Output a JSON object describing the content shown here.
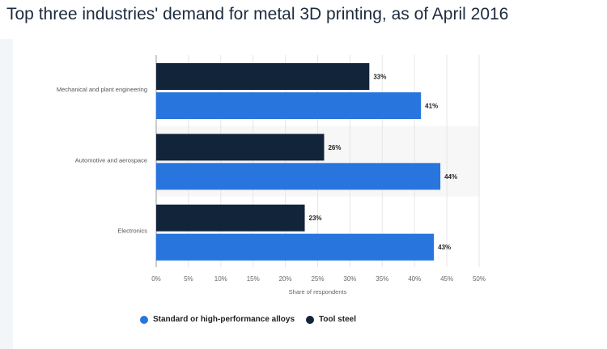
{
  "chart_data": {
    "type": "bar",
    "orientation": "horizontal",
    "title": "Top three industries' demand for metal 3D printing, as of April 2016",
    "categories": [
      "Mechanical and plant engineering",
      "Automotive and aerospace",
      "Electronics"
    ],
    "series": [
      {
        "name": "Tool steel",
        "color": "#12243a",
        "values": [
          33,
          26,
          23
        ],
        "labels": [
          "33%",
          "26%",
          "23%"
        ]
      },
      {
        "name": "Standard or high-performance alloys",
        "color": "#2876dd",
        "values": [
          41,
          44,
          43
        ],
        "labels": [
          "41%",
          "44%",
          "43%"
        ]
      }
    ],
    "xlabel": "Share of respondents",
    "xlim": [
      0,
      50
    ],
    "xticks": [
      "0%",
      "5%",
      "10%",
      "15%",
      "20%",
      "25%",
      "30%",
      "35%",
      "40%",
      "45%",
      "50%"
    ],
    "grid": true,
    "legend_position": "bottom",
    "legend": [
      "Standard or high-performance alloys",
      "Tool steel"
    ]
  }
}
